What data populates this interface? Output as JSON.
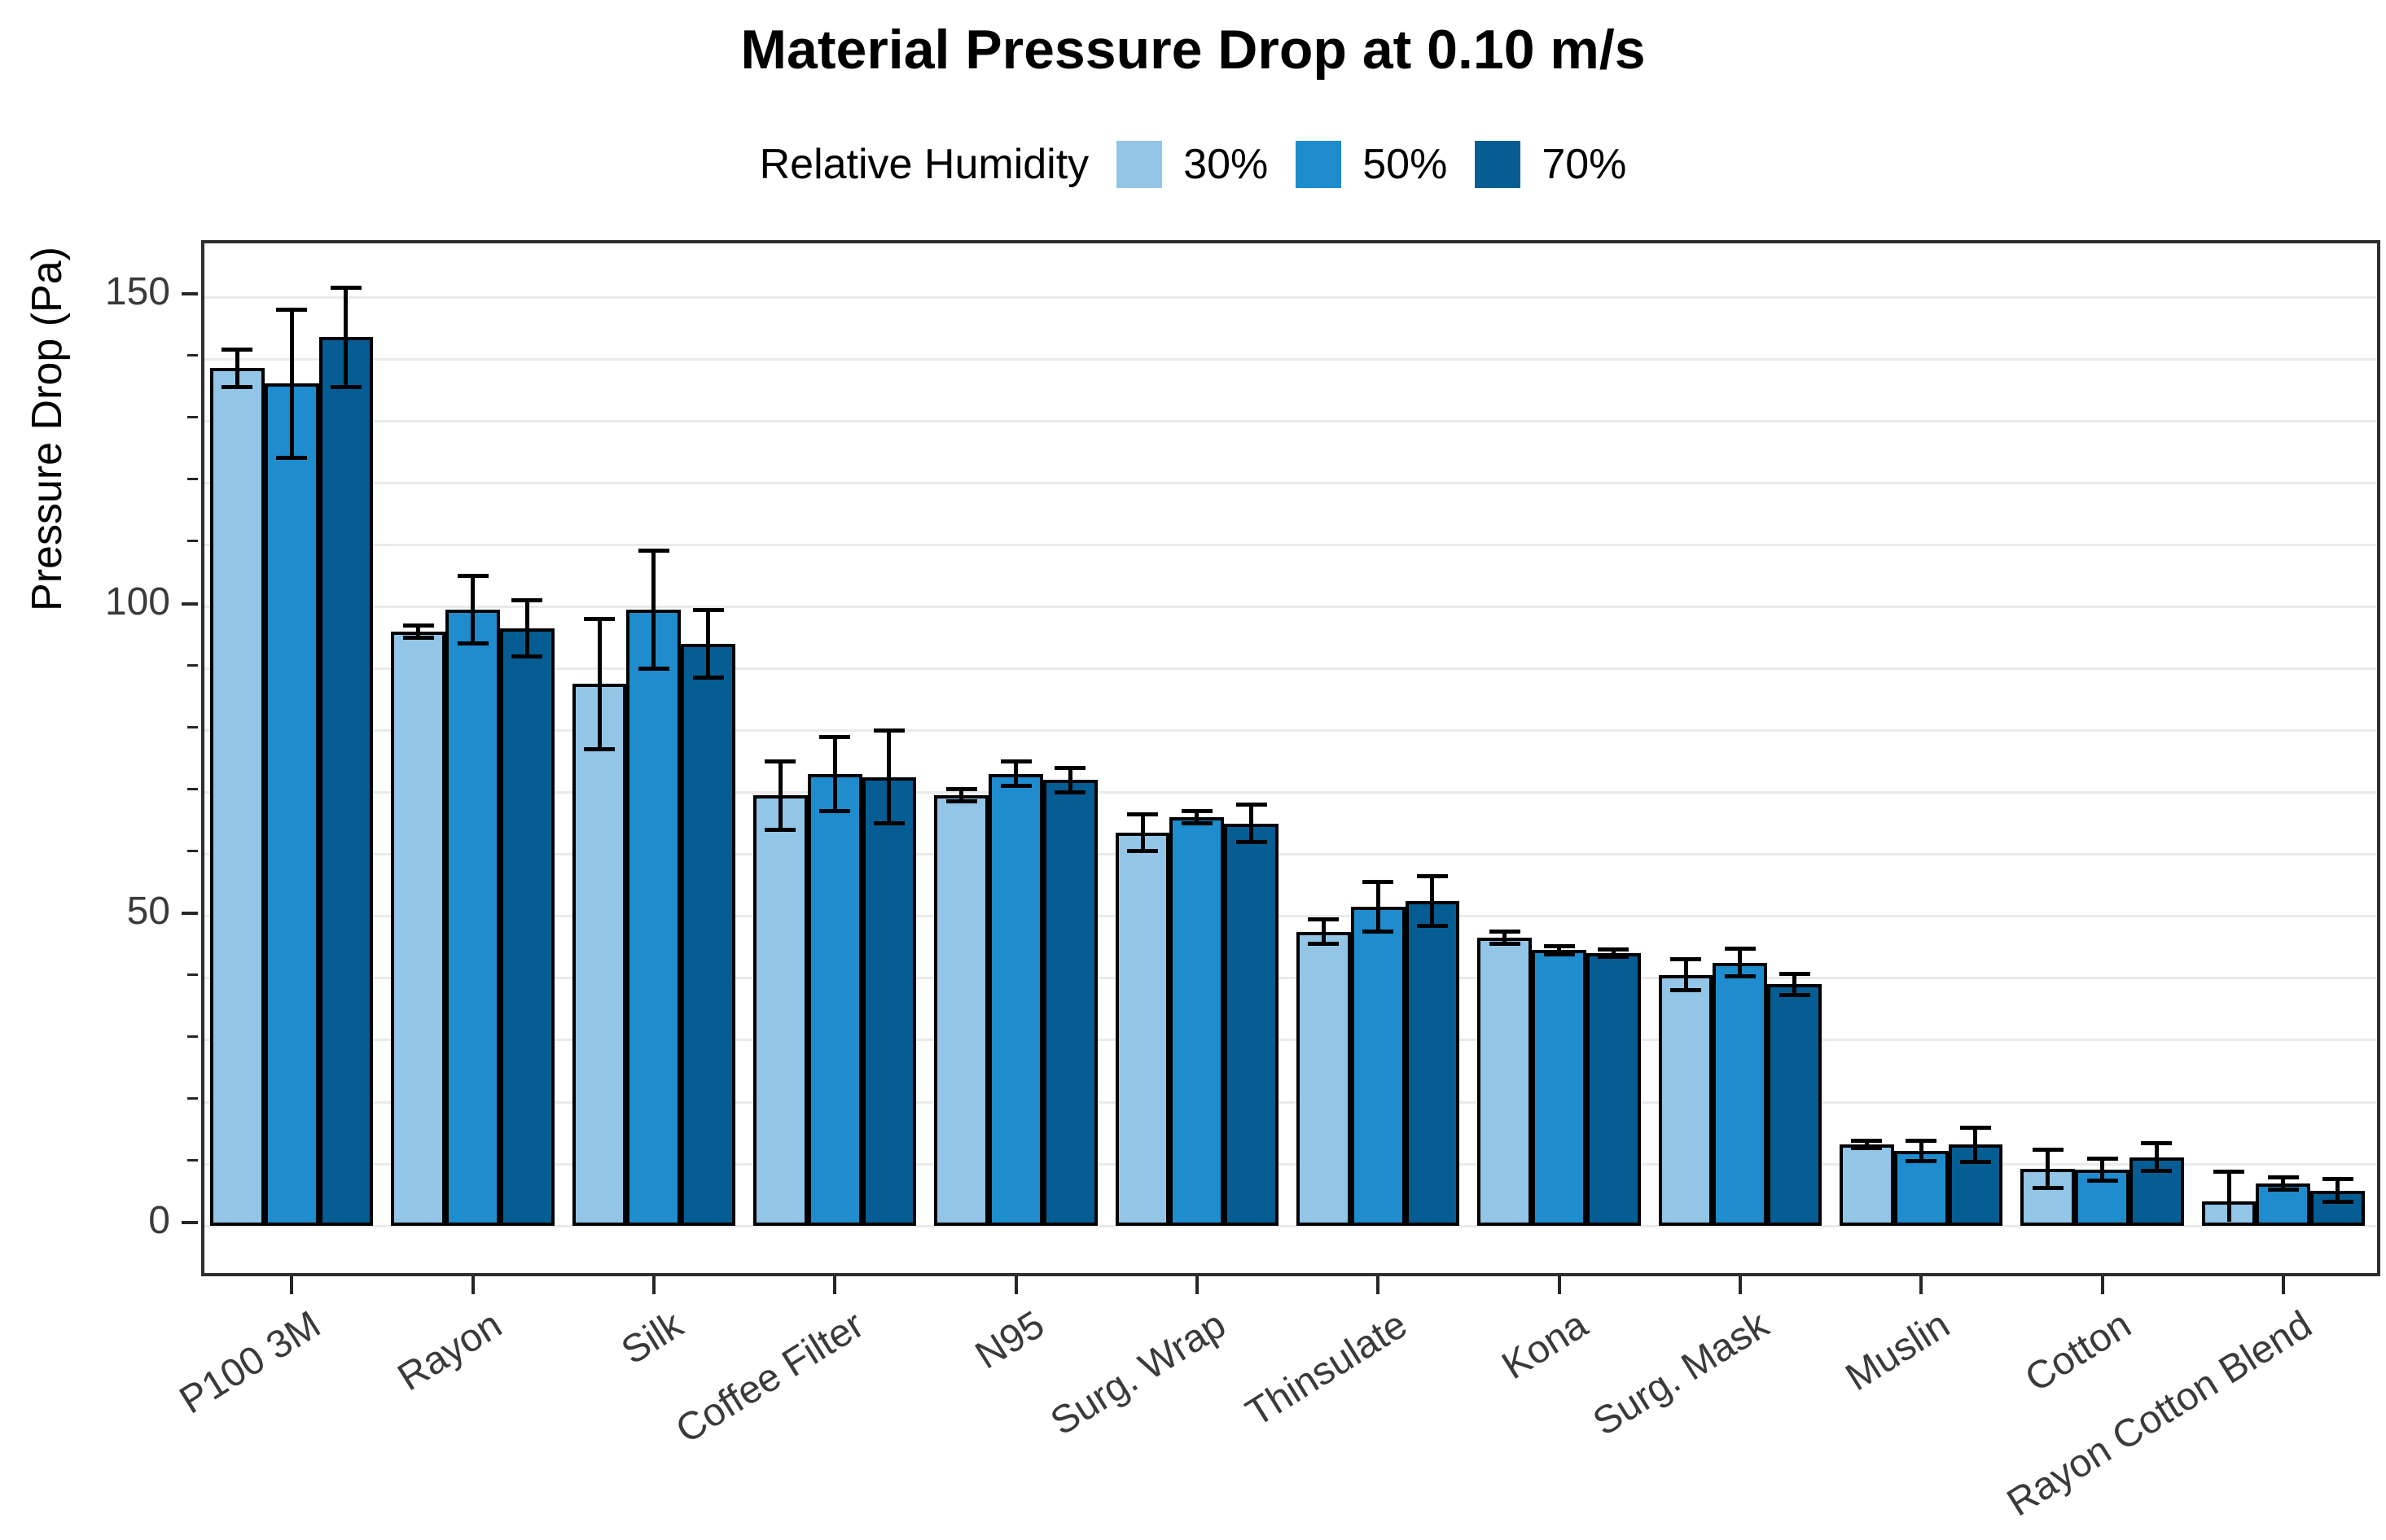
{
  "title": "Material Pressure Drop at 0.10 m/s",
  "legend": {
    "title": "Relative Humidity",
    "items": [
      {
        "label": "30%",
        "color": "#92C5E6"
      },
      {
        "label": "50%",
        "color": "#1E8CCD"
      },
      {
        "label": "70%",
        "color": "#055D94"
      }
    ]
  },
  "chart_data": {
    "type": "bar",
    "title": "Material Pressure Drop at 0.10 m/s",
    "xlabel": "",
    "ylabel": "Pressure Drop (Pa)",
    "categories": [
      "P100 3M",
      "Rayon",
      "Silk",
      "Coffee Filter",
      "N95",
      "Surg. Wrap",
      "Thinsulate",
      "Kona",
      "Surg. Mask",
      "Muslin",
      "Cotton",
      "Rayon Cotton Blend"
    ],
    "series": [
      {
        "name": "30%",
        "color": "#92C5E6",
        "values": [
          138,
          95.5,
          87,
          69,
          69,
          63,
          47,
          46,
          40,
          12.7,
          8.7,
          3.4
        ],
        "errors": [
          3,
          1,
          10.5,
          5.5,
          1,
          3,
          2,
          1,
          2.5,
          0.6,
          3.1,
          4.8
        ]
      },
      {
        "name": "50%",
        "color": "#1E8CCD",
        "values": [
          135.5,
          99,
          99,
          72.5,
          72.5,
          65.5,
          51,
          44,
          42,
          11.6,
          8.6,
          6.3
        ],
        "errors": [
          12,
          5.5,
          9.5,
          6,
          2,
          1,
          4,
          0.7,
          2.2,
          1.6,
          1.8,
          1.0
        ]
      },
      {
        "name": "70%",
        "color": "#055D94",
        "values": [
          143,
          96,
          93.5,
          72,
          71.5,
          64.5,
          52,
          43.5,
          38.5,
          12.6,
          10.6,
          5.2
        ],
        "errors": [
          8,
          4.5,
          5.5,
          7.5,
          2,
          3,
          4,
          0.6,
          1.7,
          2.8,
          2.2,
          1.8
        ]
      }
    ],
    "error_bars": true,
    "bar_edge_color": "#000000",
    "yticks_major": [
      0,
      50,
      100,
      150
    ],
    "ytick_labels": [
      "0",
      "50",
      "100",
      "150"
    ],
    "minor_tick_interval": 10,
    "ylim": [
      -7.6,
      158.7
    ],
    "grid": true,
    "grid_interval": 10,
    "legend_position": "top"
  }
}
